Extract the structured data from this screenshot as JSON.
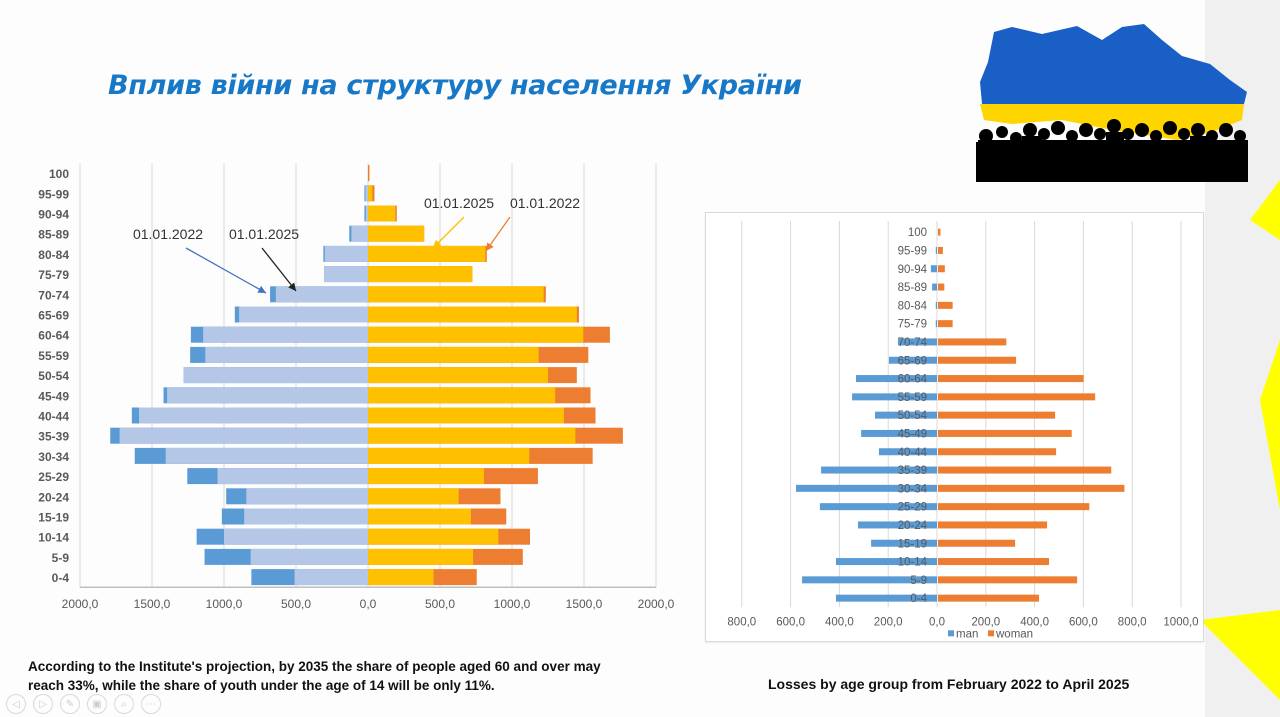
{
  "slide": {
    "title": "Вплив війни на структуру населення України",
    "caption_left_line1": "According to the Institute's projection, by 2035 the share of people aged 60 and over may",
    "caption_left_line2": "reach 33%, while the share of youth under the age of 14 will be only 11%.",
    "caption_right": "Losses by age group from February 2022 to April 2025",
    "image_alt": "Map of Ukraine in flag colors with crowd silhouettes"
  },
  "controls": [
    {
      "name": "previous-slide",
      "icon": "◁"
    },
    {
      "name": "next-slide",
      "icon": "▷"
    },
    {
      "name": "pen",
      "icon": "✎"
    },
    {
      "name": "slides-overview",
      "icon": "▣"
    },
    {
      "name": "zoom",
      "icon": "⌕"
    },
    {
      "name": "more-options",
      "icon": "⋯"
    }
  ],
  "colors": {
    "title": "#1878c8",
    "men_2022": "#5b9bd5",
    "men_2025": "#b4c7e7",
    "women_2025": "#ffc000",
    "women_2022": "#ed7d31",
    "loss_man": "#5b9bd5",
    "loss_woman": "#ed7d31",
    "ukraine_blue": "#1a5fc6",
    "ukraine_yellow": "#ffd500"
  },
  "chart_data": [
    {
      "type": "bar",
      "subtype": "population-pyramid",
      "title": "",
      "xlabel": "",
      "ylabel": "",
      "unit": "thousand persons",
      "xlim": [
        -2000,
        2000
      ],
      "x_ticks": [
        "2000,0",
        "1500,0",
        "1000,0",
        "500,0",
        "0,0",
        "500,0",
        "1000,0",
        "1500,0",
        "2000,0"
      ],
      "grid": true,
      "categories": [
        "100",
        "95-99",
        "90-94",
        "85-89",
        "80-84",
        "75-79",
        "70-74",
        "65-69",
        "60-64",
        "55-59",
        "50-54",
        "45-49",
        "40-44",
        "35-39",
        "30-34",
        "25-29",
        "20-24",
        "15-19",
        "10-14",
        "5-9",
        "0-4"
      ],
      "series": [
        {
          "name": "men 01.01.2022",
          "side": "left",
          "color_key": "men_2022",
          "values": [
            0,
            25,
            25,
            130,
            310,
            305,
            680,
            925,
            1230,
            1235,
            1280,
            1420,
            1640,
            1790,
            1620,
            1255,
            985,
            1015,
            1190,
            1135,
            810
          ]
        },
        {
          "name": "men 01.01.2025",
          "side": "left",
          "color_key": "men_2025",
          "values": [
            0,
            18,
            15,
            115,
            300,
            305,
            640,
            895,
            1145,
            1130,
            1280,
            1395,
            1590,
            1725,
            1405,
            1045,
            845,
            860,
            1000,
            815,
            510
          ]
        },
        {
          "name": "women 01.01.2022",
          "side": "right",
          "color_key": "women_2022",
          "values": [
            10,
            45,
            200,
            390,
            825,
            725,
            1235,
            1465,
            1680,
            1530,
            1450,
            1545,
            1580,
            1770,
            1560,
            1180,
            920,
            960,
            1125,
            1075,
            755
          ]
        },
        {
          "name": "women 01.01.2025",
          "side": "right",
          "color_key": "women_2025",
          "values": [
            0,
            30,
            190,
            390,
            815,
            725,
            1220,
            1450,
            1495,
            1185,
            1250,
            1300,
            1360,
            1440,
            1120,
            805,
            630,
            715,
            905,
            730,
            455
          ]
        }
      ],
      "annotations": [
        {
          "text": "01.01.2022",
          "points_to": "men 01.01.2022, 70-74",
          "arrow_color": "#4472c4"
        },
        {
          "text": "01.01.2025",
          "points_to": "men 01.01.2025, 70-74",
          "arrow_color": "#222222"
        },
        {
          "text": "01.01.2025",
          "points_to": "women 01.01.2025, 80-84",
          "arrow_color": "#ffc000"
        },
        {
          "text": "01.01.2022",
          "points_to": "women 01.01.2022, 80-84",
          "arrow_color": "#ed7d31"
        }
      ]
    },
    {
      "type": "bar",
      "subtype": "population-pyramid",
      "title": "Losses by age group from February 2022 to April 2025",
      "xlabel": "",
      "ylabel": "",
      "xlim": [
        -800,
        1000
      ],
      "x_ticks": [
        "800,0",
        "600,0",
        "400,0",
        "200,0",
        "0,0",
        "200,0",
        "400,0",
        "600,0",
        "800,0",
        "1000,0"
      ],
      "grid": true,
      "legend": {
        "position": "bottom",
        "entries": [
          "man",
          "woman"
        ]
      },
      "categories": [
        "100",
        "95-99",
        "90-94",
        "85-89",
        "80-84",
        "75-79",
        "70-74",
        "65-69",
        "60-64",
        "55-59",
        "50-54",
        "45-49",
        "40-44",
        "35-39",
        "30-34",
        "25-29",
        "20-24",
        "15-19",
        "10-14",
        "5-9",
        "0-4"
      ],
      "series": [
        {
          "name": "man",
          "side": "left",
          "color_key": "loss_man",
          "values": [
            0,
            5,
            25,
            20,
            5,
            5,
            160,
            197,
            332,
            348,
            254,
            311,
            238,
            475,
            578,
            480,
            324,
            270,
            414,
            553,
            414
          ]
        },
        {
          "name": "woman",
          "side": "right",
          "color_key": "loss_woman",
          "values": [
            10,
            20,
            28,
            26,
            60,
            60,
            280,
            320,
            597,
            644,
            480,
            548,
            484,
            710,
            764,
            620,
            447,
            316,
            455,
            570,
            414
          ]
        }
      ]
    }
  ]
}
